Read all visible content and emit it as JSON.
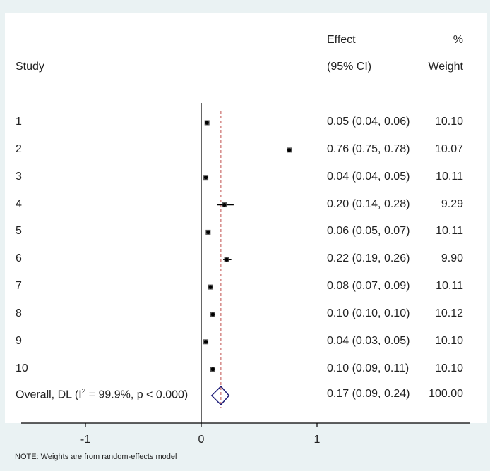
{
  "chart_data": {
    "type": "forest",
    "headers": {
      "study": "Study",
      "effect_line1": "Effect",
      "effect_line2": "(95% CI)",
      "weight_line1": "%",
      "weight_line2": "Weight"
    },
    "studies": [
      {
        "label": "1",
        "effect": 0.05,
        "lo": 0.04,
        "hi": 0.06,
        "ci_text": "0.05 (0.04, 0.06)",
        "weight": "10.10"
      },
      {
        "label": "2",
        "effect": 0.76,
        "lo": 0.75,
        "hi": 0.78,
        "ci_text": "0.76 (0.75, 0.78)",
        "weight": "10.07"
      },
      {
        "label": "3",
        "effect": 0.04,
        "lo": 0.04,
        "hi": 0.05,
        "ci_text": "0.04 (0.04, 0.05)",
        "weight": "10.11"
      },
      {
        "label": "4",
        "effect": 0.2,
        "lo": 0.14,
        "hi": 0.28,
        "ci_text": "0.20 (0.14, 0.28)",
        "weight": "9.29"
      },
      {
        "label": "5",
        "effect": 0.06,
        "lo": 0.05,
        "hi": 0.07,
        "ci_text": "0.06 (0.05, 0.07)",
        "weight": "10.11"
      },
      {
        "label": "6",
        "effect": 0.22,
        "lo": 0.19,
        "hi": 0.26,
        "ci_text": "0.22 (0.19, 0.26)",
        "weight": "9.90"
      },
      {
        "label": "7",
        "effect": 0.08,
        "lo": 0.07,
        "hi": 0.09,
        "ci_text": "0.08 (0.07, 0.09)",
        "weight": "10.11"
      },
      {
        "label": "8",
        "effect": 0.1,
        "lo": 0.1,
        "hi": 0.1,
        "ci_text": "0.10 (0.10, 0.10)",
        "weight": "10.12"
      },
      {
        "label": "9",
        "effect": 0.04,
        "lo": 0.03,
        "hi": 0.05,
        "ci_text": "0.04 (0.03, 0.05)",
        "weight": "10.10"
      },
      {
        "label": "10",
        "effect": 0.1,
        "lo": 0.09,
        "hi": 0.11,
        "ci_text": "0.10 (0.09, 0.11)",
        "weight": "10.10"
      }
    ],
    "overall": {
      "label_prefix": "Overall, DL (I",
      "label_sup": "2",
      "label_suffix": " = 99.9%, p < 0.000)",
      "effect": 0.17,
      "lo": 0.09,
      "hi": 0.24,
      "ci_text": "0.17 (0.09, 0.24)",
      "weight": "100.00"
    },
    "x_ticks": [
      -1,
      0,
      1
    ],
    "x_tick_labels": [
      "-1",
      "0",
      "1"
    ],
    "xlim": [
      -1.6,
      1.6
    ],
    "null_line": 0,
    "note": "NOTE: Weights are from random-effects model",
    "colors": {
      "marker": "#000000",
      "overall_diamond": "#1f1f7a",
      "overall_line": "#c0504d"
    }
  }
}
